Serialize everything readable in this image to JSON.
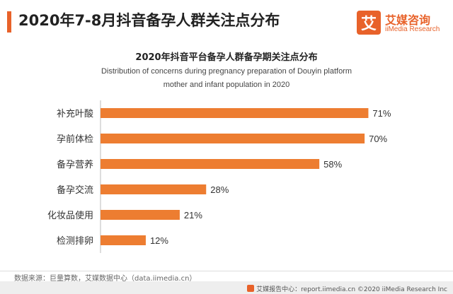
{
  "header": {
    "title": "2020年7-8月抖音备孕人群关注点分布",
    "accent_color": "#e8622a"
  },
  "logo": {
    "mark": "艾",
    "name": "艾媒咨询",
    "sub": "iiMedia Research"
  },
  "chart_data": {
    "type": "bar",
    "orientation": "horizontal",
    "title": "2020年抖音平台备孕人群备孕期关注点分布",
    "subtitle_lines": [
      "Distribution of concerns during pregnancy preparation of Douyin platform",
      "mother and infant population in 2020"
    ],
    "categories": [
      "补充叶酸",
      "孕前体检",
      "备孕营养",
      "备孕交流",
      "化妆品使用",
      "检测排卵"
    ],
    "values": [
      71,
      70,
      58,
      28,
      21,
      12
    ],
    "value_labels": [
      "71%",
      "70%",
      "58%",
      "28%",
      "21%",
      "12%"
    ],
    "unit": "%",
    "xlim": [
      0,
      100
    ],
    "bar_color": "#ed7d31",
    "grid": false,
    "legend": "none"
  },
  "source": "数据来源：巨量算数，艾媒数据中心（data.iimedia.cn）",
  "footer": "艾媒报告中心：report.iimedia.cn ©2020  iiMedia Research  Inc"
}
